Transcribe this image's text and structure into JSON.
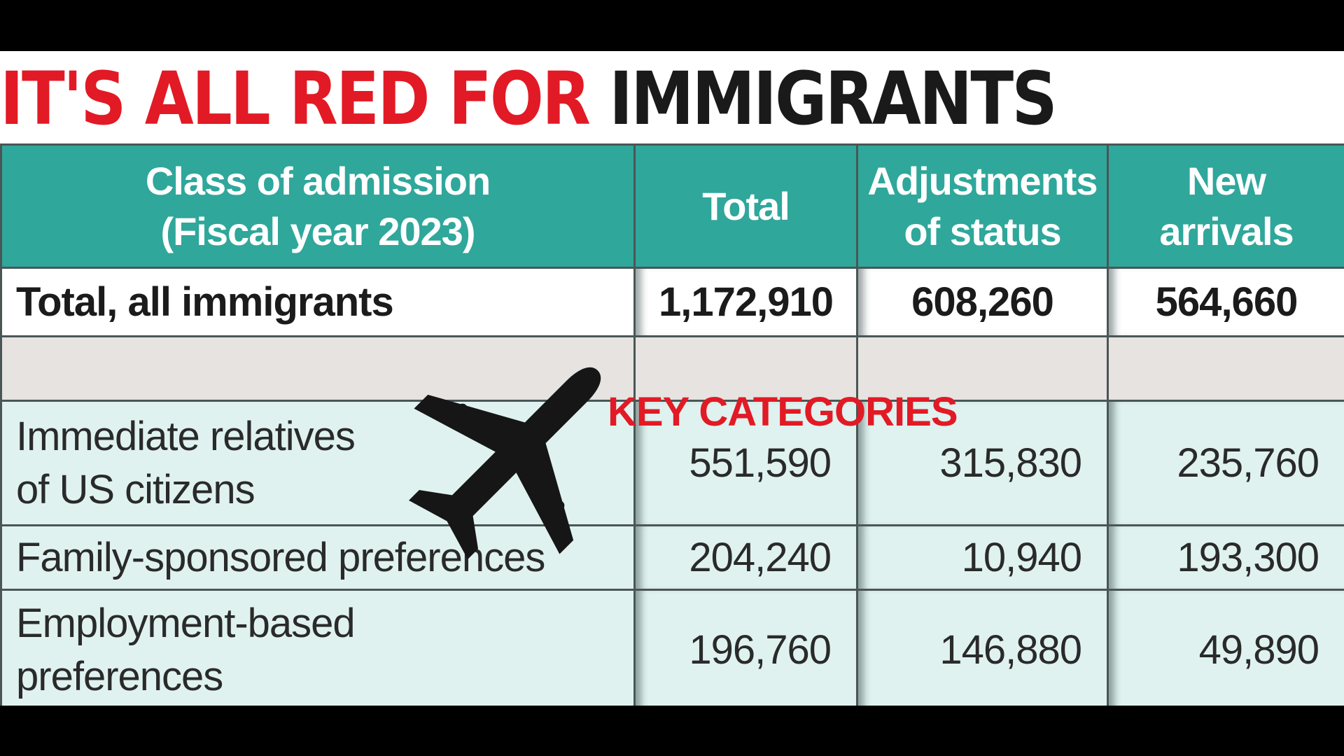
{
  "title": {
    "red": "IT'S ALL RED FOR ",
    "black": "IMMIGRANTS"
  },
  "chart_data": {
    "type": "table",
    "columns": [
      "Class of admission (Fiscal year 2023)",
      "Total",
      "Adjustments of status",
      "New arrivals"
    ],
    "header_lines": {
      "col0": [
        "Class of admission",
        "(Fiscal year 2023)"
      ],
      "col1": [
        "Total"
      ],
      "col2": [
        "Adjustments",
        "of status"
      ],
      "col3": [
        "New",
        "arrivals"
      ]
    },
    "total_row": {
      "label": "Total, all immigrants",
      "values": [
        "1,172,910",
        "608,260",
        "564,660"
      ]
    },
    "section_label": "KEY CATEGORIES",
    "rows": [
      {
        "label_lines": [
          "Immediate relatives",
          "of US citizens"
        ],
        "values": [
          "551,590",
          "315,830",
          "235,760"
        ]
      },
      {
        "label_lines": [
          "Family-sponsored preferences"
        ],
        "values": [
          "204,240",
          "10,940",
          "193,300"
        ]
      },
      {
        "label_lines": [
          "Employment-based",
          "preferences"
        ],
        "values": [
          "196,760",
          "146,880",
          "49,890"
        ]
      }
    ]
  },
  "colors": {
    "header_teal": "#2fa79b",
    "title_red": "#e21a25",
    "row_mint": "#dff2ef",
    "key_row_grey": "#e6e3e0"
  },
  "icon": "airplane-icon"
}
